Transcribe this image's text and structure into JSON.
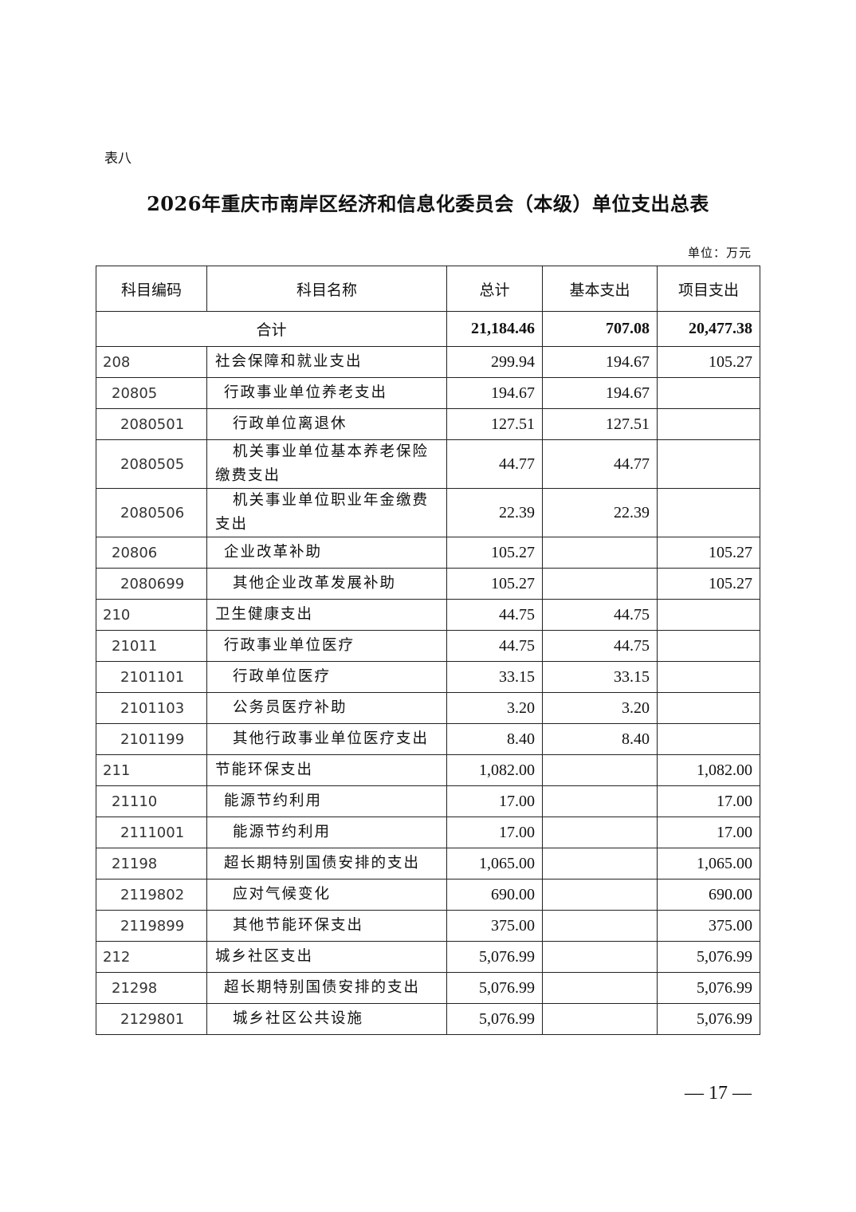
{
  "doc_label": "表八",
  "title": "2026年重庆市南岸区经济和信息化委员会（本级）单位支出总表",
  "unit": "单位：万元",
  "table": {
    "headers": [
      "科目编码",
      "科目名称",
      "总计",
      "基本支出",
      "项目支出"
    ],
    "total": {
      "label": "合计",
      "total": "21,184.46",
      "basic": "707.08",
      "project": "20,477.38"
    },
    "rows": [
      {
        "code": "208",
        "name": "社会保障和就业支出",
        "total": "299.94",
        "basic": "194.67",
        "project": "105.27"
      },
      {
        "code": "20805",
        "name": "行政事业单位养老支出",
        "total": "194.67",
        "basic": "194.67",
        "project": ""
      },
      {
        "code": "2080501",
        "name": "行政单位离退休",
        "total": "127.51",
        "basic": "127.51",
        "project": ""
      },
      {
        "code": "2080505",
        "name": "机关事业单位基本养老保险缴费支出",
        "total": "44.77",
        "basic": "44.77",
        "project": ""
      },
      {
        "code": "2080506",
        "name": "机关事业单位职业年金缴费支出",
        "total": "22.39",
        "basic": "22.39",
        "project": ""
      },
      {
        "code": "20806",
        "name": "企业改革补助",
        "total": "105.27",
        "basic": "",
        "project": "105.27"
      },
      {
        "code": "2080699",
        "name": "其他企业改革发展补助",
        "total": "105.27",
        "basic": "",
        "project": "105.27"
      },
      {
        "code": "210",
        "name": "卫生健康支出",
        "total": "44.75",
        "basic": "44.75",
        "project": ""
      },
      {
        "code": "21011",
        "name": "行政事业单位医疗",
        "total": "44.75",
        "basic": "44.75",
        "project": ""
      },
      {
        "code": "2101101",
        "name": "行政单位医疗",
        "total": "33.15",
        "basic": "33.15",
        "project": ""
      },
      {
        "code": "2101103",
        "name": "公务员医疗补助",
        "total": "3.20",
        "basic": "3.20",
        "project": ""
      },
      {
        "code": "2101199",
        "name": "其他行政事业单位医疗支出",
        "total": "8.40",
        "basic": "8.40",
        "project": ""
      },
      {
        "code": "211",
        "name": "节能环保支出",
        "total": "1,082.00",
        "basic": "",
        "project": "1,082.00"
      },
      {
        "code": "21110",
        "name": "能源节约利用",
        "total": "17.00",
        "basic": "",
        "project": "17.00"
      },
      {
        "code": "2111001",
        "name": "能源节约利用",
        "total": "17.00",
        "basic": "",
        "project": "17.00"
      },
      {
        "code": "21198",
        "name": "超长期特别国债安排的支出",
        "total": "1,065.00",
        "basic": "",
        "project": "1,065.00"
      },
      {
        "code": "2119802",
        "name": "应对气候变化",
        "total": "690.00",
        "basic": "",
        "project": "690.00"
      },
      {
        "code": "2119899",
        "name": "其他节能环保支出",
        "total": "375.00",
        "basic": "",
        "project": "375.00"
      },
      {
        "code": "212",
        "name": "城乡社区支出",
        "total": "5,076.99",
        "basic": "",
        "project": "5,076.99"
      },
      {
        "code": "21298",
        "name": "超长期特别国债安排的支出",
        "total": "5,076.99",
        "basic": "",
        "project": "5,076.99"
      },
      {
        "code": "2129801",
        "name": "城乡社区公共设施",
        "total": "5,076.99",
        "basic": "",
        "project": "5,076.99"
      }
    ]
  },
  "page_number": "— 17 —"
}
